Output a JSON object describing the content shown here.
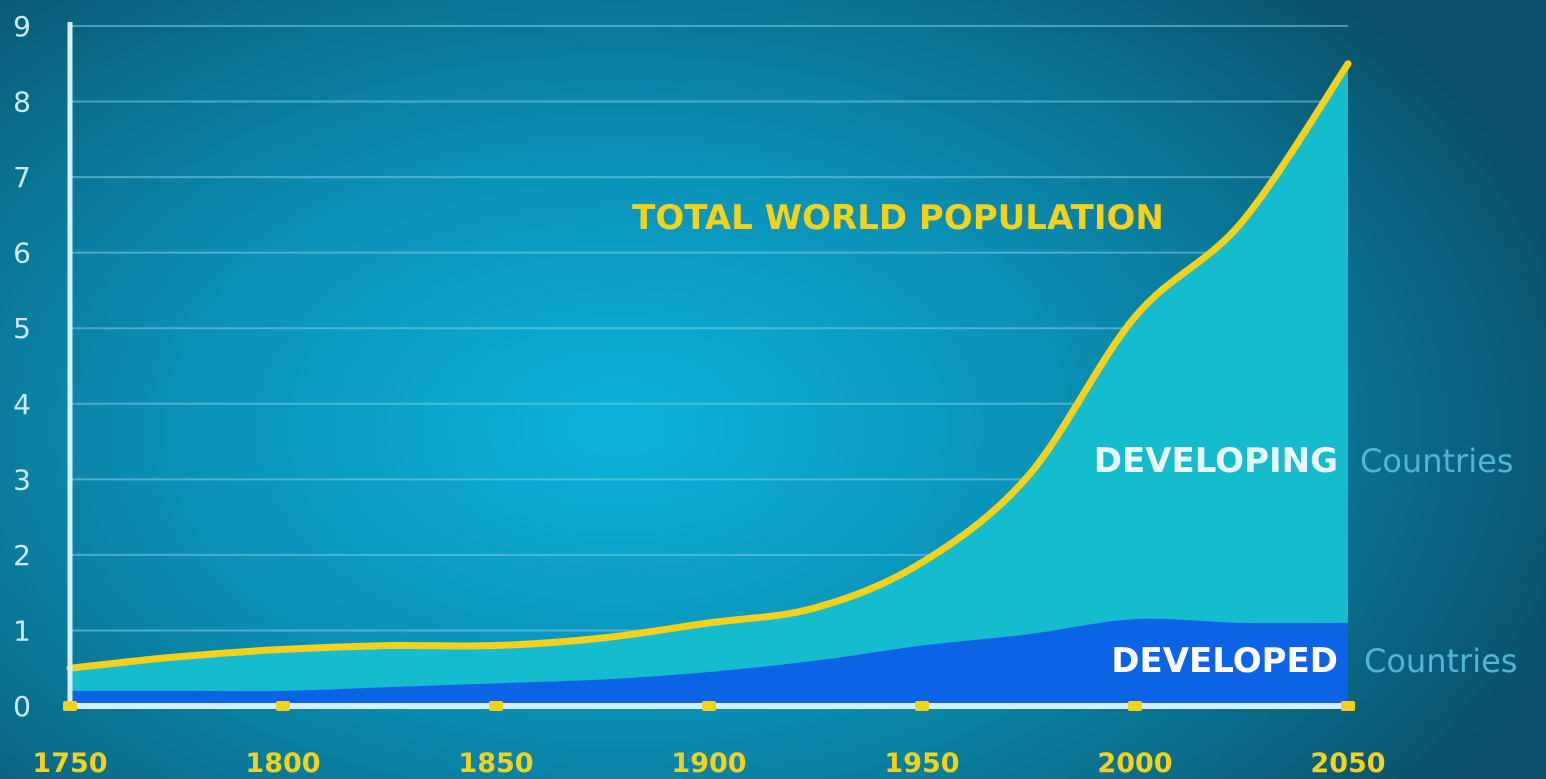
{
  "chart_data": {
    "type": "area",
    "x": [
      1750,
      1775,
      1800,
      1825,
      1850,
      1875,
      1900,
      1925,
      1950,
      1975,
      2000,
      2025,
      2050
    ],
    "series": [
      {
        "name": "DEVELOPED Countries",
        "values": [
          0.2,
          0.2,
          0.2,
          0.25,
          0.3,
          0.35,
          0.45,
          0.6,
          0.8,
          0.95,
          1.15,
          1.1,
          1.1
        ]
      },
      {
        "name": "DEVELOPING Countries",
        "values": [
          0.3,
          0.45,
          0.55,
          0.55,
          0.5,
          0.55,
          0.65,
          0.7,
          1.15,
          2.1,
          4.0,
          5.3,
          7.4
        ]
      },
      {
        "name": "TOTAL WORLD POPULATION",
        "values": [
          0.5,
          0.65,
          0.75,
          0.8,
          0.8,
          0.9,
          1.1,
          1.3,
          1.9,
          3.05,
          5.15,
          6.4,
          8.5
        ]
      }
    ],
    "ylim": [
      0,
      9
    ],
    "xlim": [
      1750,
      2050
    ],
    "xticks": [
      "1750",
      "1800",
      "1850",
      "1900",
      "1950",
      "2000",
      "2050"
    ],
    "yticks": [
      "0",
      "1",
      "2",
      "3",
      "4",
      "5",
      "6",
      "7",
      "8",
      "9"
    ],
    "grid": true,
    "annotations": {
      "total": "TOTAL WORLD POPULATION",
      "developing_bold": "DEVELOPING",
      "developing_rest": "Countries",
      "developed_bold": "DEVELOPED",
      "developed_rest": "Countries"
    },
    "colors": {
      "developed": "#0c63e6",
      "developing": "#14bccd",
      "total_line": "#f2d21c",
      "axis": "#d7eef5",
      "grid": "#7fd0e4",
      "countries_text": "#4fb6d8"
    }
  }
}
